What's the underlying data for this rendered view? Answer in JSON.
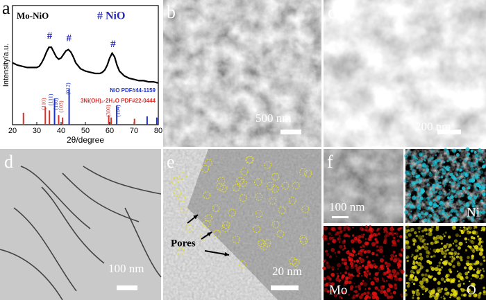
{
  "chart_data": {
    "type": "xrd",
    "x_label": "2θ/degree",
    "y_label": "Intensity/a.u.",
    "legend_note": "# NiO",
    "xlim": [
      20,
      80
    ],
    "xticks": [
      20,
      30,
      40,
      50,
      60,
      70,
      80
    ],
    "ylim": [
      0,
      100
    ],
    "series": [
      {
        "name": "Mo-NiO",
        "color": "#000000",
        "x": [
          20,
          22,
          24,
          26,
          28,
          30,
          31,
          32,
          33,
          34,
          35,
          36,
          37,
          38,
          39,
          40,
          41,
          42,
          43,
          44,
          45,
          46,
          48,
          50,
          52,
          54,
          56,
          57,
          58,
          59,
          60,
          61,
          62,
          63,
          64,
          66,
          68,
          70,
          72,
          74,
          76,
          78,
          80
        ],
        "values": [
          52,
          50,
          49,
          48,
          48,
          48,
          49,
          52,
          56,
          61,
          65,
          65,
          61,
          57,
          55,
          56,
          59,
          62,
          63,
          61,
          57,
          52,
          47,
          45,
          44,
          43,
          43,
          44,
          46,
          50,
          56,
          60,
          57,
          50,
          45,
          41,
          39,
          38,
          37,
          37,
          36,
          36,
          35
        ]
      }
    ],
    "peak_markers": {
      "label": "#",
      "x": [
        35.3,
        43.2,
        61.4
      ],
      "values": [
        74,
        72,
        67
      ]
    },
    "references": [
      {
        "name": "NiO PDF#44-1159",
        "color": "#1c2fc8",
        "x": [
          37.3,
          43.3,
          62.9,
          75.4,
          79.4
        ],
        "values": [
          22,
          30,
          16,
          7,
          6
        ]
      },
      {
        "name": "3Ni(OH)₂·2H₂O PDF#22-0444",
        "color": "#d8302a",
        "x": [
          24.5,
          33.5,
          35.2,
          39.0,
          40.6,
          59.6,
          60.6,
          70.2
        ],
        "values": [
          10,
          15,
          12,
          8,
          6,
          8,
          6,
          5
        ]
      }
    ],
    "hkl_labels": [
      {
        "text": "(110)",
        "color": "#d8302a"
      },
      {
        "text": "(111)",
        "color": "#1c2fc8"
      },
      {
        "text": "(110)",
        "color": "#1c2fc8"
      },
      {
        "text": "(103)",
        "color": "#d8302a"
      },
      {
        "text": "(012)",
        "color": "#1c2fc8"
      },
      {
        "text": "(300)",
        "color": "#d8302a"
      },
      {
        "text": "(104)",
        "color": "#1c2fc8"
      }
    ]
  },
  "panels": [
    {
      "label": "a"
    },
    {
      "label": "b",
      "scale_bar": "500 nm"
    },
    {
      "label": "c",
      "scale_bar": "200 nm"
    },
    {
      "label": "d",
      "scale_bar": "100 nm"
    },
    {
      "label": "e",
      "scale_bar": "20 nm",
      "annotation": "Pores"
    },
    {
      "label": "f",
      "scale_bar": "100 nm",
      "maps": [
        "Ni",
        "Mo",
        "O"
      ]
    }
  ]
}
